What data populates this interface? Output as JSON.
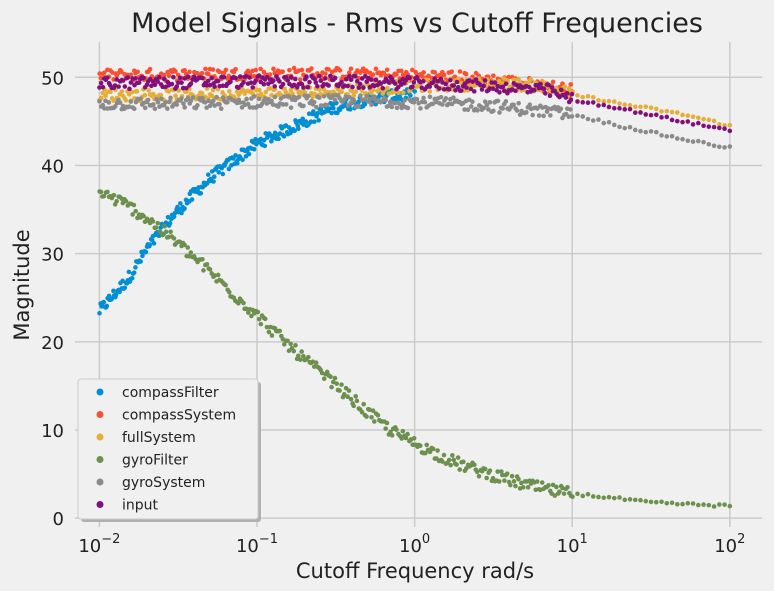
{
  "chart_data": {
    "type": "scatter",
    "title": "Model Signals - Rms vs Cutoff Frequencies",
    "xlabel": "Cutoff Frequency rad/s",
    "ylabel": "Magnitude",
    "xscale": "log",
    "xlim": [
      0.007,
      160
    ],
    "ylim": [
      -1,
      54
    ],
    "x_ticks": [
      {
        "value": 0.01,
        "base": "10",
        "exp": "−2"
      },
      {
        "value": 0.1,
        "base": "10",
        "exp": "−1"
      },
      {
        "value": 1,
        "base": "10",
        "exp": "0"
      },
      {
        "value": 10,
        "base": "10",
        "exp": "1"
      },
      {
        "value": 100,
        "base": "10",
        "exp": "2"
      }
    ],
    "y_ticks": [
      0,
      10,
      20,
      30,
      40,
      50
    ],
    "grid": true,
    "legend_position": "lower-left",
    "series": [
      {
        "name": "compassFilter",
        "color": "#008fd5",
        "x": [
          0.01,
          0.015,
          0.02,
          0.03,
          0.05,
          0.1,
          0.2,
          0.3,
          0.5,
          0.7,
          1.0
        ],
        "y": [
          23.5,
          27,
          30.5,
          34.5,
          38.5,
          42.5,
          45,
          46.5,
          47.5,
          47.8,
          48
        ]
      },
      {
        "name": "compassSystem",
        "color": "#fc4f30",
        "x": [
          0.01,
          0.03,
          0.1,
          0.3,
          1.0,
          2.0,
          4.0,
          7.0,
          10.0
        ],
        "y": [
          50.2,
          50.3,
          50.4,
          50.4,
          50.2,
          50,
          49.5,
          49,
          48.5
        ]
      },
      {
        "name": "fullSystem",
        "color": "#e5ae38",
        "x": [
          0.01,
          0.03,
          0.1,
          0.3,
          1.0,
          3.0,
          7.0,
          10.0,
          15.0,
          20.0,
          30.0,
          50.0,
          70.0,
          100.0
        ],
        "y": [
          48,
          48,
          48.2,
          48.5,
          49,
          49.3,
          49,
          48,
          47.5,
          47,
          46.5,
          45.8,
          45.2,
          44.5
        ]
      },
      {
        "name": "gyroFilter",
        "color": "#6d904f",
        "x": [
          0.01,
          0.015,
          0.02,
          0.03,
          0.05,
          0.07,
          0.1,
          0.15,
          0.2,
          0.3,
          0.5,
          0.7,
          1.0,
          1.5,
          2.0,
          3.0,
          5.0,
          7.0,
          10.0,
          20.0,
          30.0,
          50.0,
          100.0
        ],
        "y": [
          37,
          35.5,
          34,
          31.5,
          28,
          25.5,
          23,
          20,
          18,
          15.5,
          12,
          10,
          8.5,
          7,
          6,
          5,
          3.8,
          3.2,
          2.8,
          2.2,
          1.8,
          1.6,
          1.4
        ]
      },
      {
        "name": "gyroSystem",
        "color": "#8b8b8b",
        "x": [
          0.01,
          0.03,
          0.1,
          0.3,
          1.0,
          3.0,
          10.0,
          20.0,
          50.0,
          100.0
        ],
        "y": [
          47,
          47,
          47.2,
          47.3,
          47.2,
          46.8,
          45.8,
          44.5,
          43,
          42
        ]
      },
      {
        "name": "input",
        "color": "#810f7c",
        "x": [
          0.01,
          0.03,
          0.1,
          0.3,
          1.0,
          3.0,
          7.0,
          10.0,
          20.0,
          50.0,
          100.0
        ],
        "y": [
          49.3,
          49.4,
          49.5,
          49.5,
          49.3,
          49,
          48.5,
          47.5,
          46.5,
          45,
          44
        ]
      }
    ]
  }
}
